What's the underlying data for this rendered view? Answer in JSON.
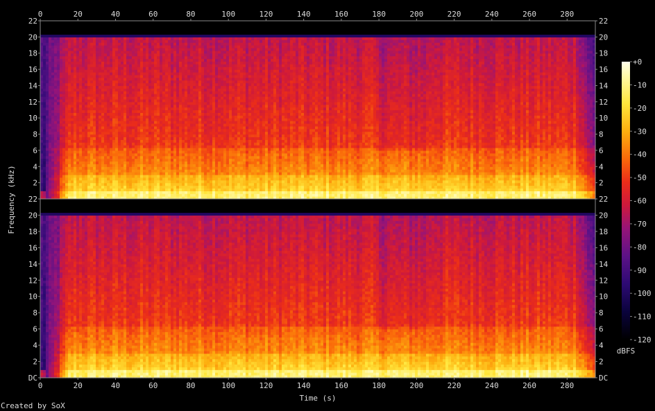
{
  "chart_data": {
    "type": "heatmap",
    "title": "",
    "xlabel": "Time (s)",
    "ylabel": "Frequency (kHz)",
    "x_ticks": [
      0,
      20,
      40,
      60,
      80,
      100,
      120,
      140,
      160,
      180,
      200,
      220,
      240,
      260,
      280
    ],
    "xlim": [
      0,
      295
    ],
    "channels": [
      {
        "channel": 1,
        "y_ticks": [
          "2",
          "4",
          "6",
          "8",
          "10",
          "12",
          "14",
          "16",
          "18",
          "20",
          "22"
        ]
      },
      {
        "channel": 2,
        "y_ticks": [
          "DC",
          "2",
          "4",
          "6",
          "8",
          "10",
          "12",
          "14",
          "16",
          "18",
          "20",
          "22"
        ]
      }
    ],
    "ylim_khz": [
      0,
      22
    ],
    "lowpass_cutoff_khz": 20,
    "colorbar": {
      "label": "dBFS",
      "ticks": [
        "+0",
        "-10",
        "-20",
        "-30",
        "-40",
        "-50",
        "-60",
        "-70",
        "-80",
        "-90",
        "-100",
        "-110",
        "-120"
      ],
      "range_db": [
        -120,
        0
      ]
    },
    "credit": "Created by SoX"
  }
}
